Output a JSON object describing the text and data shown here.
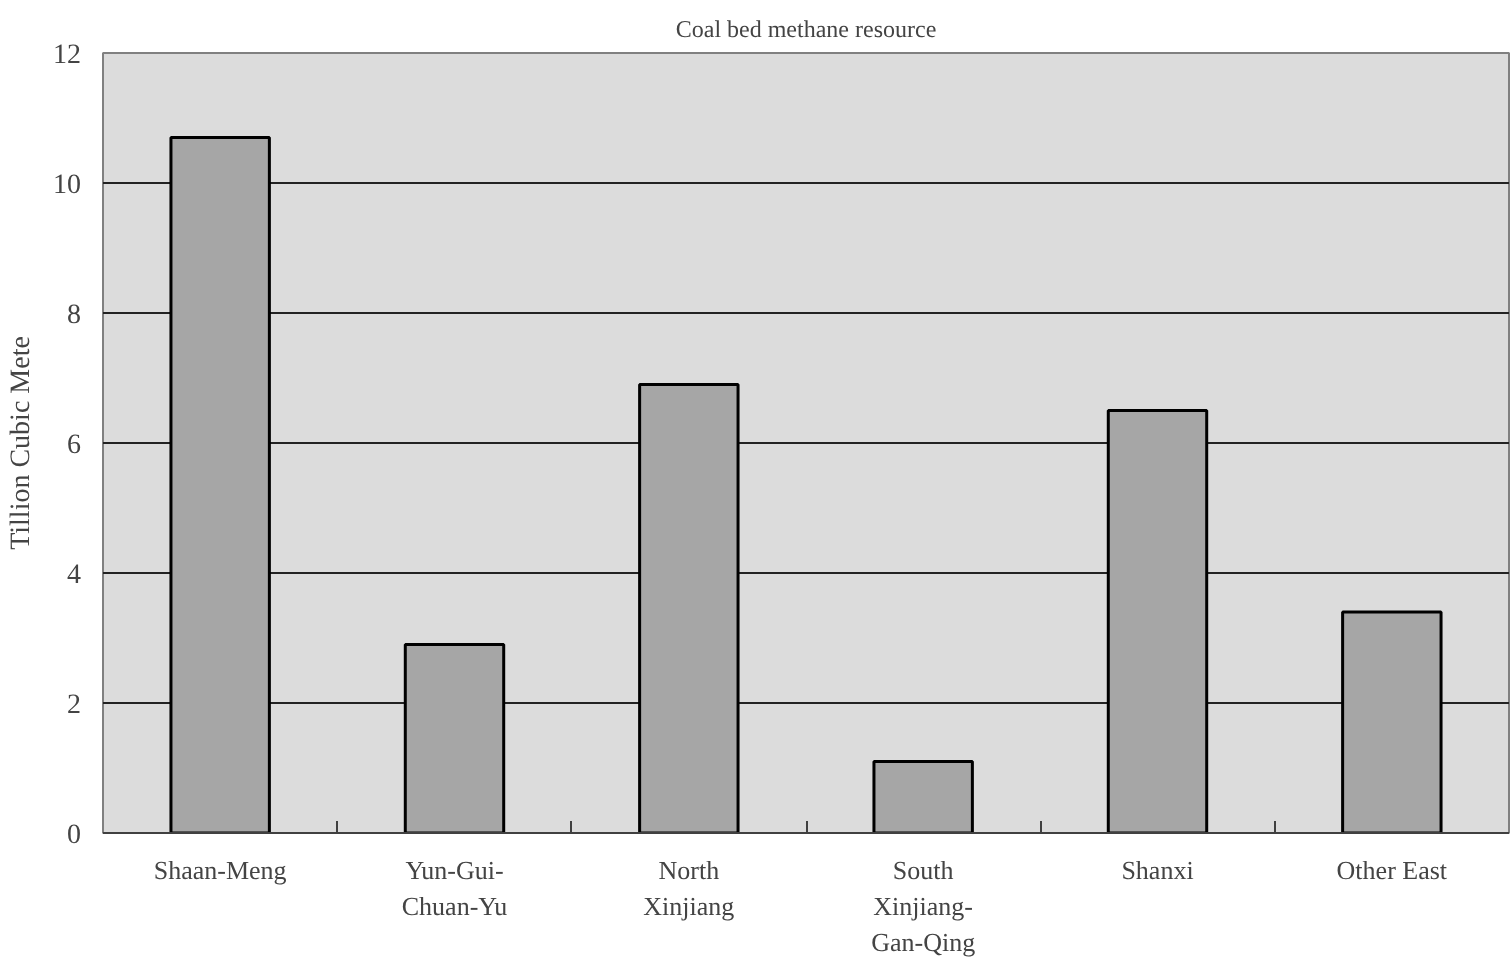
{
  "chart_data": {
    "type": "bar",
    "title": "Coal bed methane resource",
    "ylabel": "Tillion Cubic Mete",
    "categories": [
      "Shaan-Meng",
      "Yun-Gui-Chuan-Yu",
      "North Xinjiang",
      "South Xinjiang-Gan-Qing",
      "Shanxi",
      "Other East"
    ],
    "values": [
      10.7,
      2.9,
      6.9,
      1.1,
      6.5,
      3.4
    ],
    "color": "#a6a6a6",
    "ylim": [
      0,
      12
    ],
    "yticks": [
      0,
      2,
      4,
      6,
      8,
      10,
      12
    ],
    "grid": "y"
  }
}
